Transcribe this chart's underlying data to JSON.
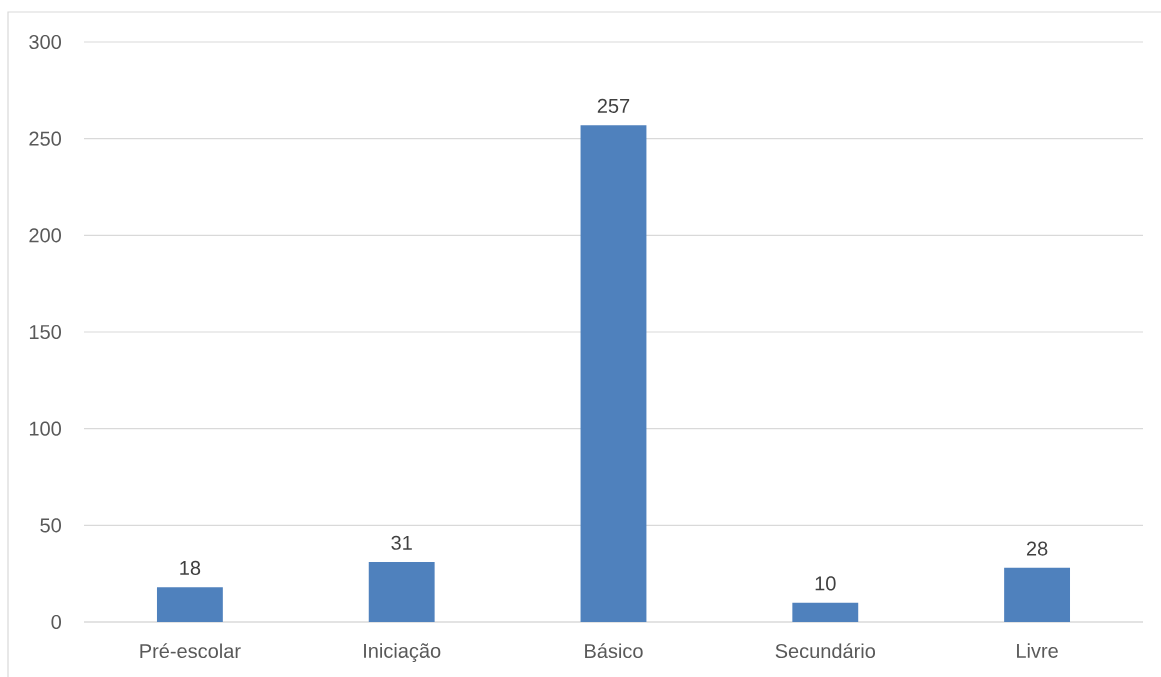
{
  "chart_data": {
    "type": "bar",
    "categories": [
      "Pré-escolar",
      "Iniciação",
      "Básico",
      "Secundário",
      "Livre"
    ],
    "values": [
      18,
      31,
      257,
      10,
      28
    ],
    "color": "#4f81bd",
    "ylim": [
      0,
      300
    ],
    "yticks": [
      0,
      50,
      100,
      150,
      200,
      250,
      300
    ],
    "grid": "y",
    "data_labels": true
  }
}
